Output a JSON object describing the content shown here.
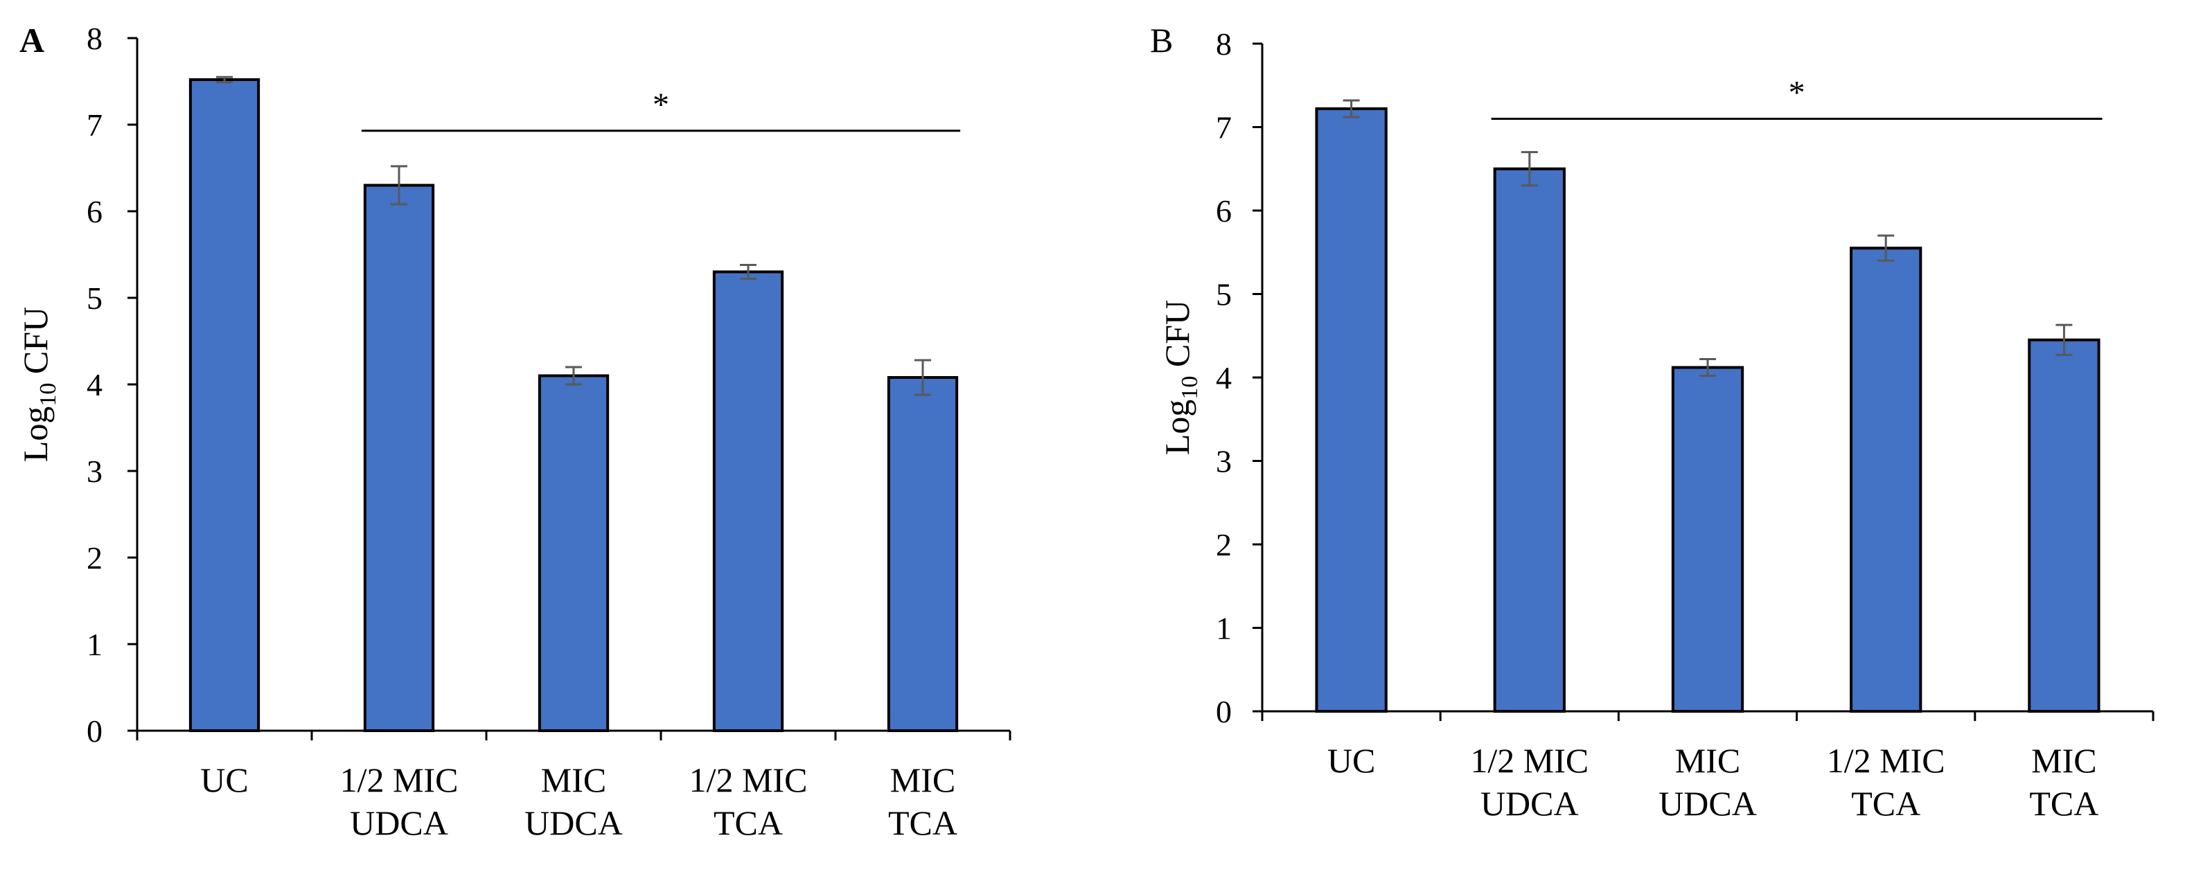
{
  "colors": {
    "bar_fill": "#4472c4",
    "bar_stroke": "#000000",
    "error_bar": "#595959",
    "axis": "#000000"
  },
  "chart_data": [
    {
      "panel_label": "A",
      "type": "bar",
      "ylabel_main": "Log",
      "ylabel_sub": "10",
      "ylabel_unit": " CFU",
      "ylim": [
        0,
        8
      ],
      "yticks": [
        "0",
        "1",
        "2",
        "3",
        "4",
        "5",
        "6",
        "7",
        "8"
      ],
      "grid": false,
      "categories": [
        [
          "UC"
        ],
        [
          "1/2 MIC",
          "UDCA"
        ],
        [
          "MIC",
          "UDCA"
        ],
        [
          "1/2 MIC",
          "TCA"
        ],
        [
          "MIC",
          "TCA"
        ]
      ],
      "values": [
        7.52,
        6.3,
        4.1,
        5.3,
        4.08
      ],
      "errors": [
        0.03,
        0.22,
        0.1,
        0.08,
        0.2
      ],
      "significance": {
        "label": "*",
        "from_category": 1,
        "to_category": 4,
        "y": 6.93
      }
    },
    {
      "panel_label": "B",
      "type": "bar",
      "ylabel_main": "Log",
      "ylabel_sub": "10",
      "ylabel_unit": " CFU",
      "ylim": [
        0,
        8
      ],
      "yticks": [
        "0",
        "1",
        "2",
        "3",
        "4",
        "5",
        "6",
        "7",
        "8"
      ],
      "grid": false,
      "categories": [
        [
          "UC"
        ],
        [
          "1/2 MIC",
          "UDCA"
        ],
        [
          "MIC",
          "UDCA"
        ],
        [
          "1/2 MIC",
          "TCA"
        ],
        [
          "MIC",
          "TCA"
        ]
      ],
      "values": [
        7.22,
        6.5,
        4.12,
        5.55,
        4.45
      ],
      "errors": [
        0.1,
        0.2,
        0.1,
        0.15,
        0.18
      ],
      "significance": {
        "label": "*",
        "from_category": 1,
        "to_category": 4,
        "y": 7.1
      }
    }
  ]
}
